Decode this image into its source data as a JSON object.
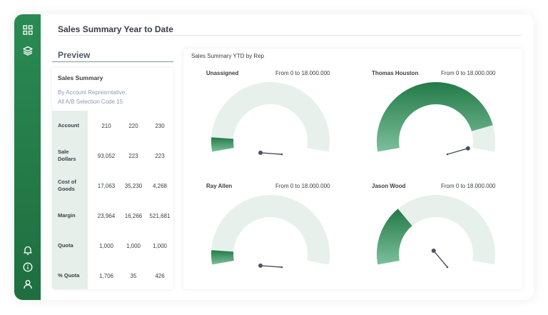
{
  "page": {
    "title": "Sales Summary Year to Date"
  },
  "sidebar": {
    "top_icons": [
      "grid-icon",
      "layers-icon"
    ],
    "bottom_icons": [
      "bell-icon",
      "info-icon",
      "user-icon"
    ],
    "color": "#237a48"
  },
  "preview": {
    "heading": "Preview",
    "card_title": "Sales Summary",
    "subtitle_1": "By Account Represrntative:",
    "subtitle_2": "All A/B Selection Code 15",
    "rows": [
      {
        "label": "Account",
        "values": [
          "210",
          "220",
          "230"
        ]
      },
      {
        "label": "Sale Dollars",
        "values": [
          "93,052",
          "223",
          "223"
        ]
      },
      {
        "label": "Cost of Goods",
        "values": [
          "17,063",
          "35,230",
          "4,268"
        ]
      },
      {
        "label": "Margin",
        "values": [
          "23,964",
          "16,266",
          "521,681"
        ]
      },
      {
        "label": "Quota",
        "values": [
          "1,000",
          "1,000",
          "1,000"
        ]
      },
      {
        "label": "% Quota",
        "values": [
          "1,706",
          "35",
          "426"
        ]
      }
    ]
  },
  "charts": {
    "title": "Sales Summary YTD by Rep",
    "gauges": [
      {
        "name": "Unassigned",
        "range": "From 0 to 18.000.000",
        "fraction": 0.07
      },
      {
        "name": "Thomas Houston",
        "range": "From 0 to 18.000.000",
        "fraction": 0.87
      },
      {
        "name": "Ray Allen",
        "range": "From 0 to 18.000.000",
        "fraction": 0.07
      },
      {
        "name": "Jason Wood",
        "range": "From 0 to 18.000.000",
        "fraction": 0.3
      }
    ],
    "track_color": "#e8f0ec",
    "fill_color": "#2b8751",
    "needle_color": "#4a5163"
  }
}
